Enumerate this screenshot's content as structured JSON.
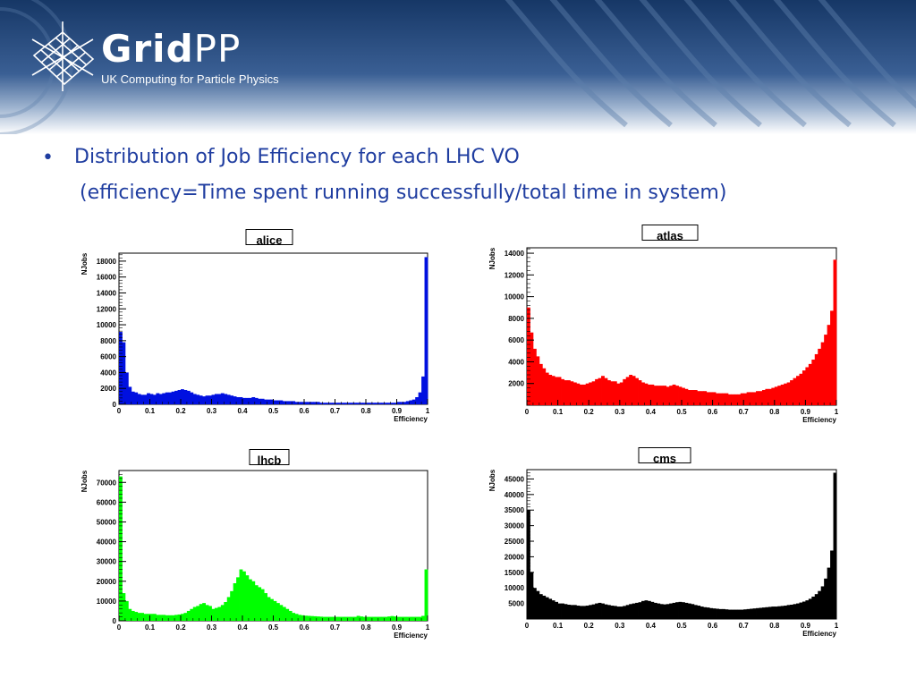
{
  "header": {
    "brand_bold": "Grid",
    "brand_light": "PP",
    "tagline": "UK Computing for Particle Physics"
  },
  "slide": {
    "bullet": "•",
    "heading": "Distribution of Job Efficiency for each LHC VO",
    "subheading": "(efficiency=Time spent running successfully/total time in system)"
  },
  "colors": {
    "banner_dark": "#163766",
    "banner_light": "#ffffff",
    "heading_text": "#1f3da0"
  },
  "chart_data": [
    {
      "type": "bar",
      "title": "alice",
      "xlabel": "Efficiency",
      "ylabel": "NJobs",
      "color": "#0010e0",
      "xlim": [
        0,
        1
      ],
      "ylim": [
        0,
        19000
      ],
      "xticks": [
        "0",
        "0.1",
        "0.2",
        "0.3",
        "0.4",
        "0.5",
        "0.6",
        "0.7",
        "0.8",
        "0.9",
        "1"
      ],
      "yticks": [
        "0",
        "2000",
        "4000",
        "6000",
        "8000",
        "10000",
        "12000",
        "14000",
        "16000",
        "18000"
      ],
      "values": [
        9100,
        7800,
        4000,
        2200,
        1600,
        1500,
        1300,
        1200,
        1200,
        1400,
        1300,
        1200,
        1400,
        1300,
        1400,
        1500,
        1500,
        1600,
        1700,
        1800,
        1900,
        1800,
        1700,
        1500,
        1300,
        1200,
        1100,
        1000,
        1100,
        1100,
        1200,
        1300,
        1300,
        1400,
        1300,
        1200,
        1100,
        1000,
        900,
        900,
        800,
        800,
        800,
        900,
        800,
        700,
        700,
        600,
        600,
        600,
        500,
        500,
        500,
        400,
        400,
        400,
        400,
        300,
        300,
        300,
        300,
        300,
        300,
        300,
        300,
        200,
        200,
        200,
        200,
        200,
        200,
        200,
        200,
        200,
        200,
        200,
        200,
        200,
        200,
        200,
        200,
        200,
        200,
        200,
        200,
        200,
        200,
        200,
        200,
        200,
        300,
        300,
        300,
        400,
        500,
        600,
        900,
        1500,
        3500,
        18500
      ]
    },
    {
      "type": "bar",
      "title": "atlas",
      "xlabel": "Efficiency",
      "ylabel": "NJobs",
      "color": "#ff0000",
      "xlim": [
        0,
        1
      ],
      "ylim": [
        0,
        14500
      ],
      "xticks": [
        "0",
        "0.1",
        "0.2",
        "0.3",
        "0.4",
        "0.5",
        "0.6",
        "0.7",
        "0.8",
        "0.9",
        "1"
      ],
      "yticks": [
        "2000",
        "4000",
        "6000",
        "8000",
        "10000",
        "12000",
        "14000"
      ],
      "values": [
        9000,
        6700,
        5200,
        4500,
        3800,
        3400,
        3000,
        2800,
        2700,
        2600,
        2600,
        2400,
        2300,
        2300,
        2200,
        2100,
        2000,
        1900,
        1900,
        2000,
        2100,
        2200,
        2400,
        2500,
        2700,
        2500,
        2300,
        2200,
        2200,
        2000,
        2100,
        2400,
        2600,
        2800,
        2700,
        2500,
        2300,
        2100,
        2000,
        1900,
        1900,
        1800,
        1800,
        1800,
        1800,
        1700,
        1800,
        1900,
        1800,
        1700,
        1600,
        1500,
        1400,
        1400,
        1400,
        1300,
        1300,
        1300,
        1200,
        1200,
        1200,
        1100,
        1100,
        1100,
        1100,
        1000,
        1000,
        1000,
        1000,
        1100,
        1100,
        1200,
        1200,
        1200,
        1300,
        1300,
        1400,
        1500,
        1500,
        1600,
        1700,
        1800,
        1900,
        2000,
        2100,
        2300,
        2500,
        2700,
        2900,
        3200,
        3500,
        3800,
        4200,
        4700,
        5200,
        5800,
        6500,
        7400,
        8700,
        13400
      ]
    },
    {
      "type": "bar",
      "title": "lhcb",
      "xlabel": "Efficiency",
      "ylabel": "NJobs",
      "color": "#00ff00",
      "xlim": [
        0,
        1
      ],
      "ylim": [
        0,
        76000
      ],
      "xticks": [
        "0",
        "0.1",
        "0.2",
        "0.3",
        "0.4",
        "0.5",
        "0.6",
        "0.7",
        "0.8",
        "0.9",
        "1"
      ],
      "yticks": [
        "0",
        "10000",
        "20000",
        "30000",
        "40000",
        "50000",
        "60000",
        "70000"
      ],
      "values": [
        73000,
        14000,
        10000,
        6000,
        5000,
        4500,
        4000,
        4000,
        3500,
        3500,
        3500,
        3500,
        3000,
        3000,
        3000,
        2800,
        2800,
        2800,
        3000,
        3200,
        3500,
        4000,
        5000,
        6000,
        7000,
        7500,
        8500,
        9000,
        8000,
        7500,
        6000,
        6500,
        7000,
        8000,
        9500,
        12000,
        15000,
        19000,
        22000,
        26000,
        25000,
        23000,
        21000,
        20000,
        18000,
        17000,
        16000,
        14000,
        12000,
        11000,
        10000,
        9000,
        8000,
        7000,
        6000,
        5000,
        4000,
        3500,
        3000,
        2800,
        2600,
        2500,
        2400,
        2300,
        2200,
        2100,
        2000,
        2000,
        2000,
        2000,
        2000,
        2000,
        2000,
        2000,
        2000,
        2000,
        2000,
        2500,
        2200,
        2000,
        2000,
        2000,
        2000,
        2000,
        2000,
        2000,
        2000,
        2200,
        2400,
        2200,
        2000,
        2000,
        2000,
        2000,
        2000,
        2000,
        2000,
        2000,
        2500,
        26000
      ]
    },
    {
      "type": "bar",
      "title": "cms",
      "xlabel": "Efficiency",
      "ylabel": "NJobs",
      "color": "#000000",
      "xlim": [
        0,
        1
      ],
      "ylim": [
        0,
        48000
      ],
      "xticks": [
        "0",
        "0.1",
        "0.2",
        "0.3",
        "0.4",
        "0.5",
        "0.6",
        "0.7",
        "0.8",
        "0.9",
        "1"
      ],
      "yticks": [
        "5000",
        "10000",
        "15000",
        "20000",
        "25000",
        "30000",
        "35000",
        "40000",
        "45000"
      ],
      "values": [
        35000,
        15000,
        10000,
        9000,
        8000,
        7500,
        7000,
        6500,
        6000,
        5500,
        5000,
        5000,
        4800,
        4600,
        4500,
        4500,
        4300,
        4200,
        4200,
        4300,
        4500,
        4700,
        5000,
        5200,
        5000,
        4700,
        4500,
        4300,
        4200,
        4000,
        4000,
        4200,
        4500,
        4800,
        5000,
        5200,
        5400,
        5800,
        6000,
        5800,
        5500,
        5200,
        5000,
        4800,
        4700,
        4800,
        5000,
        5200,
        5400,
        5500,
        5400,
        5200,
        5000,
        4800,
        4500,
        4300,
        4000,
        3800,
        3700,
        3500,
        3400,
        3300,
        3200,
        3200,
        3100,
        3000,
        3000,
        3000,
        3000,
        3000,
        3100,
        3200,
        3300,
        3400,
        3500,
        3600,
        3700,
        3800,
        3900,
        4000,
        4000,
        4100,
        4200,
        4300,
        4500,
        4600,
        4800,
        5000,
        5300,
        5600,
        6000,
        6500,
        7200,
        8000,
        9000,
        10500,
        13000,
        16500,
        22000,
        47000
      ]
    }
  ]
}
